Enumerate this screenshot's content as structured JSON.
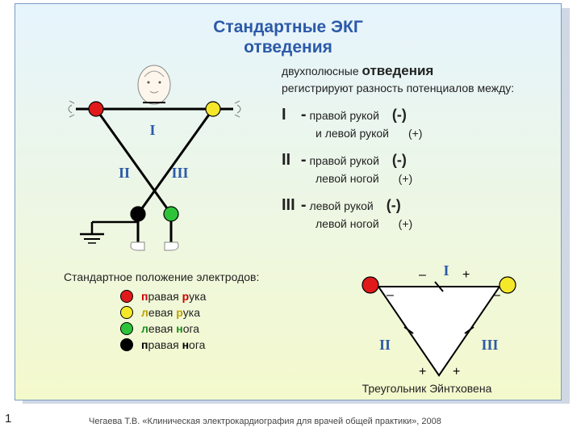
{
  "title_line1": "Стандартные ЭКГ",
  "title_line2": "отведения",
  "description": {
    "intro_prefix": "двухполюсные ",
    "intro_bold": "отведения",
    "intro_rest": "регистрируют разность потенциалов между:",
    "leads": [
      {
        "num": "I",
        "line1": "правой рукой",
        "pol1": "(-)",
        "line2": "и левой рукой",
        "pol2": "(+)"
      },
      {
        "num": "II",
        "line1": "правой рукой",
        "pol1": "(-)",
        "line2": "левой ногой",
        "pol2": "(+)"
      },
      {
        "num": "III",
        "line1": "левой рукой",
        "pol1": "(-)",
        "line2": "левой ногой",
        "pol2": "(+)"
      }
    ]
  },
  "body_labels": {
    "I": "I",
    "II": "II",
    "III": "III"
  },
  "electrode_colors": {
    "right_arm": "#e01a1a",
    "left_arm": "#f5e82a",
    "left_leg": "#2dc43a",
    "right_leg": "#000000"
  },
  "legend": {
    "title": "Стандартное положение электродов:",
    "items": [
      {
        "color": "#e01a1a",
        "text_plain1": "равая ",
        "text_plain2": "ука",
        "l1": "п",
        "l2": "р",
        "letter_class": "letter-red"
      },
      {
        "color": "#f5e82a",
        "text_plain1": "евая ",
        "text_plain2": "ука",
        "l1": "л",
        "l2": "р",
        "letter_class": "letter-yellow"
      },
      {
        "color": "#2dc43a",
        "text_plain1": "евая ",
        "text_plain2": "ога",
        "l1": "л",
        "l2": "н",
        "letter_class": "letter-green"
      },
      {
        "color": "#000000",
        "text_plain1": "равая ",
        "text_plain2": "ога",
        "l1": "п",
        "l2": "н",
        "letter_class": "letter-black"
      }
    ]
  },
  "triangle": {
    "caption": "Треугольник  Эйнтховена",
    "labels": {
      "I": "I",
      "II": "II",
      "III": "III"
    }
  },
  "citation": "Чегаева Т.В. «Клиническая электрокардиография для врачей общей практики», 2008",
  "page_num": "1",
  "colors": {
    "title": "#2b5aa8",
    "bg_top": "#e6f4fd",
    "bg_bottom": "#f4f9cc",
    "shadow": "#d0d8e4"
  }
}
